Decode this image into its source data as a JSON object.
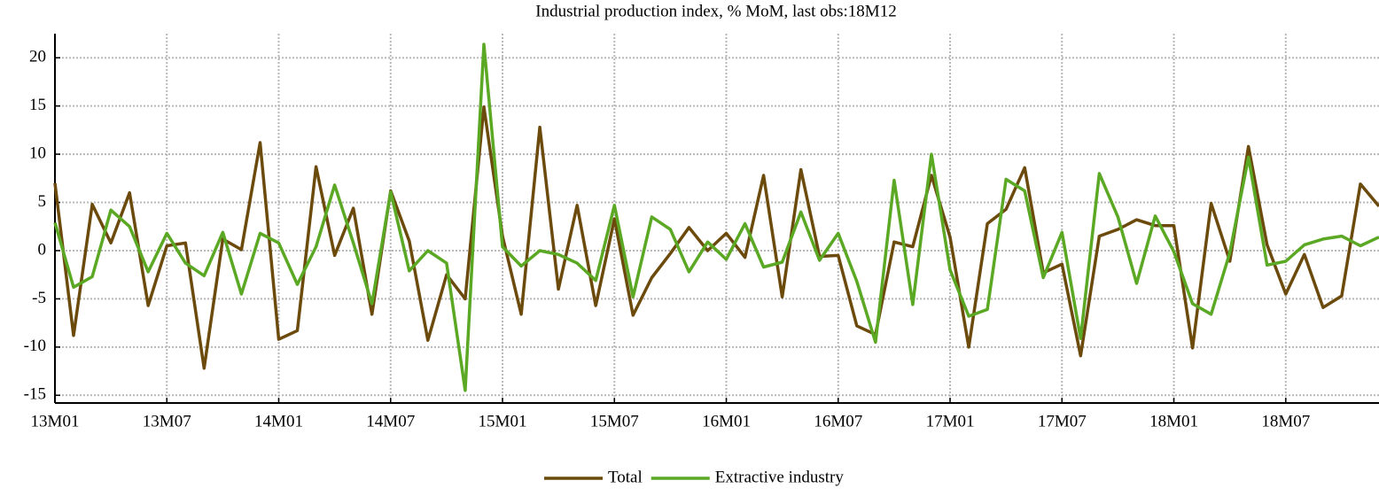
{
  "chart_data": {
    "type": "line",
    "title": "Industrial production index, % MoM, last obs:18M12",
    "categories": [
      "13M01",
      null,
      null,
      null,
      null,
      null,
      "13M07",
      null,
      null,
      null,
      null,
      null,
      "14M01",
      null,
      null,
      null,
      null,
      null,
      "14M07",
      null,
      null,
      null,
      null,
      null,
      "15M01",
      null,
      null,
      null,
      null,
      null,
      "15M07",
      null,
      null,
      null,
      null,
      null,
      "16M01",
      null,
      null,
      null,
      null,
      null,
      "16M07",
      null,
      null,
      null,
      null,
      null,
      "17M01",
      null,
      null,
      null,
      null,
      null,
      "17M07",
      null,
      null,
      null,
      null,
      null,
      "18M01",
      null,
      null,
      null,
      null,
      null,
      "18M07",
      null,
      null,
      null,
      null,
      null
    ],
    "series": [
      {
        "name": "Total",
        "color": "#6b4a0c",
        "values": [
          7,
          -8.8,
          4.8,
          0.8,
          6,
          -5.7,
          0.5,
          0.8,
          -12.2,
          1.2,
          0.1,
          11.2,
          -9.2,
          -8.3,
          8.7,
          -0.5,
          4.4,
          -6.6,
          6.2,
          1,
          -9.3,
          -2.5,
          -5,
          14.9,
          1.5,
          -6.6,
          12.8,
          -4,
          4.7,
          -5.7,
          3.3,
          -6.7,
          -2.8,
          -0.3,
          2.4,
          0,
          1.8,
          -0.7,
          7.8,
          -4.8,
          8.4,
          -0.6,
          -0.5,
          -7.8,
          -8.7,
          0.9,
          0.4,
          7.8,
          1.4,
          -10,
          2.8,
          4.3,
          8.6,
          -2.3,
          -1.4,
          -10.9,
          1.5,
          2.2,
          3.2,
          2.6,
          2.6,
          -10.1,
          4.9,
          -1.1,
          10.8,
          0.6,
          -4.5,
          -0.4,
          -5.9,
          -4.7,
          6.9,
          4.6
        ]
      },
      {
        "name": "Extractive industry",
        "color": "#5aa823",
        "values": [
          2.9,
          -3.8,
          -2.7,
          4.2,
          2.5,
          -2.2,
          1.8,
          -1.3,
          -2.6,
          1.9,
          -4.5,
          1.8,
          0.8,
          -3.5,
          0.4,
          6.8,
          0.8,
          -5.5,
          6.1,
          -2.1,
          0,
          -1.3,
          -14.5,
          21.4,
          0.4,
          -1.6,
          0,
          -0.4,
          -1.3,
          -3.1,
          4.7,
          -4.8,
          3.5,
          2.2,
          -2.2,
          0.9,
          -0.9,
          2.8,
          -1.7,
          -1.2,
          4,
          -1,
          1.8,
          -3.2,
          -9.5,
          7.3,
          -5.6,
          10,
          -2,
          -6.8,
          -6.1,
          7.4,
          6.2,
          -2.8,
          1.9,
          -9.1,
          8,
          3.5,
          -3.4,
          3.6,
          -0.1,
          -5.5,
          -6.6,
          -0.2,
          9.7,
          -1.5,
          -1.1,
          0.6,
          1.2,
          1.5,
          0.5,
          1.4
        ]
      }
    ],
    "ylim": [
      -15.8,
      22.5
    ],
    "yticks": [
      -15,
      -10,
      -5,
      0,
      5,
      10,
      15,
      20
    ],
    "grid": true,
    "legend": "bottom"
  }
}
